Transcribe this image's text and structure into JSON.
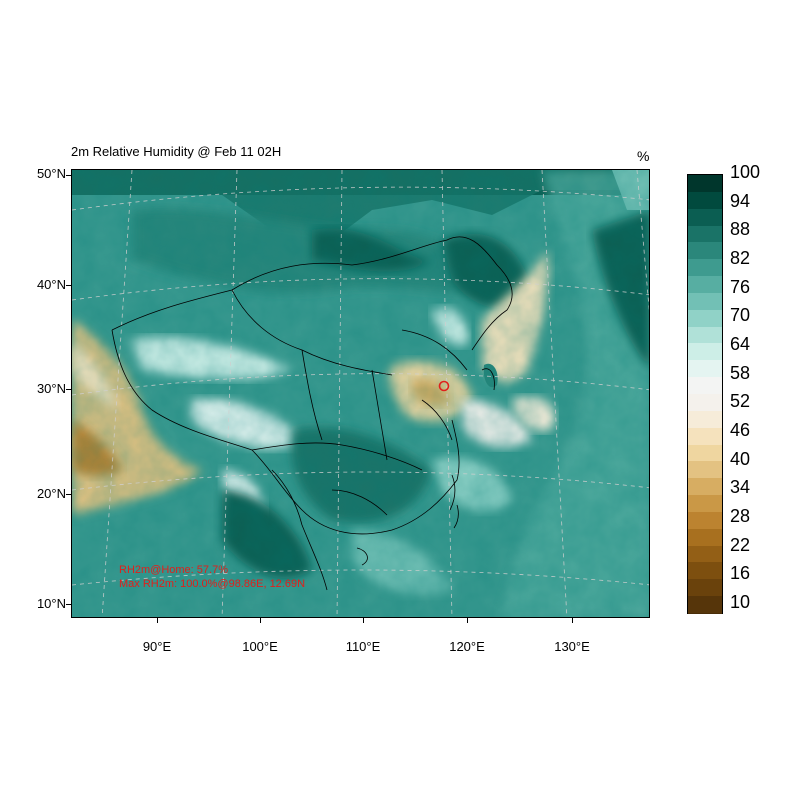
{
  "title": "2m Relative Humidity @ Feb 11 02H",
  "units": "%",
  "lat_labels": [
    "50°N",
    "40°N",
    "30°N",
    "20°N",
    "10°N"
  ],
  "lon_labels": [
    "90°E",
    "100°E",
    "110°E",
    "120°E",
    "130°E"
  ],
  "annotations": {
    "home": "RH2m@Home: 57.7%",
    "max": "Max RH2m: 100.0%@98.86E, 12.69N"
  },
  "colorbar": {
    "labels": [
      "100",
      "94",
      "88",
      "82",
      "76",
      "70",
      "64",
      "58",
      "52",
      "46",
      "40",
      "34",
      "28",
      "22",
      "16",
      "10"
    ],
    "colors": [
      "#00362c",
      "#014a3e",
      "#0b5e52",
      "#1a7367",
      "#2b877b",
      "#3e9b8f",
      "#57aea2",
      "#72c0b5",
      "#90d2c7",
      "#b0e1d8",
      "#cdeee7",
      "#e4f4f1",
      "#f3f4f3",
      "#f4f1ec",
      "#f6ecd9",
      "#f5e2bd",
      "#efd6a0",
      "#e3c282",
      "#d7ad62",
      "#ca9846",
      "#bc8330",
      "#a8701f",
      "#935f16",
      "#7d4f0f",
      "#6a420c",
      "#56350a"
    ]
  }
}
